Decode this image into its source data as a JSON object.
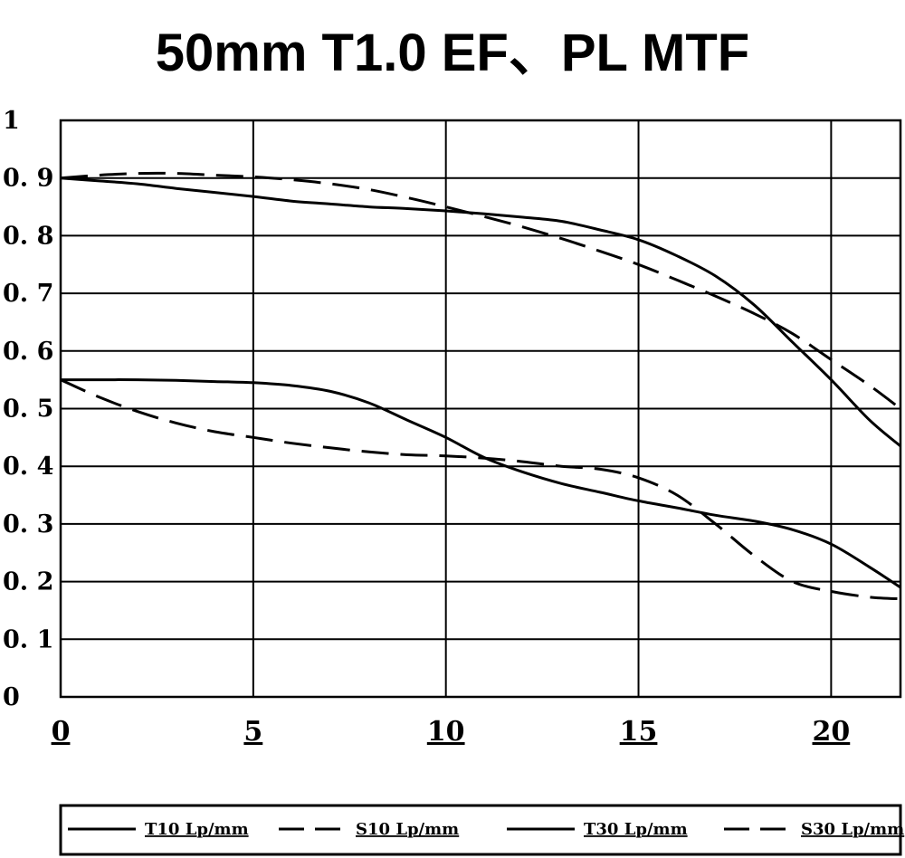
{
  "chart_data": {
    "type": "line",
    "title": "50mm T1.0 EF、PL   MTF",
    "xlabel": "",
    "ylabel": "",
    "xlim": [
      0,
      21.8
    ],
    "ylim": [
      0,
      1
    ],
    "x_ticks": [
      "0",
      "5",
      "10",
      "15",
      "20"
    ],
    "x_tick_values": [
      0,
      5,
      10,
      15,
      20
    ],
    "y_ticks": [
      "0",
      "0.1",
      "0.2",
      "0.3",
      "0.4",
      "0.5",
      "0.6",
      "0.7",
      "0.8",
      "0.9",
      "1"
    ],
    "y_tick_labels": [
      "0",
      "0. 1",
      "0. 2",
      "0. 3",
      "0. 4",
      "0. 5",
      "0. 6",
      "0. 7",
      "0. 8",
      "0. 9",
      "1"
    ],
    "grid": true,
    "legend_position": "bottom",
    "series": [
      {
        "name": "T10 Lp/mm",
        "style": "solid",
        "color": "#000000",
        "x": [
          0,
          1,
          2,
          3,
          4,
          5,
          6,
          7,
          8,
          9,
          10,
          11,
          12,
          13,
          14,
          15,
          16,
          17,
          18,
          19,
          20,
          21,
          21.8
        ],
        "y": [
          0.9,
          0.895,
          0.89,
          0.882,
          0.875,
          0.868,
          0.86,
          0.855,
          0.85,
          0.847,
          0.843,
          0.838,
          0.832,
          0.825,
          0.81,
          0.793,
          0.765,
          0.73,
          0.68,
          0.615,
          0.55,
          0.48,
          0.435
        ]
      },
      {
        "name": "S10 Lp/mm",
        "style": "dashed",
        "color": "#000000",
        "x": [
          0,
          1,
          2,
          3,
          4,
          5,
          6,
          7,
          8,
          9,
          10,
          11,
          12,
          13,
          14,
          15,
          16,
          17,
          18,
          19,
          20,
          21,
          21.8
        ],
        "y": [
          0.9,
          0.905,
          0.908,
          0.908,
          0.905,
          0.902,
          0.897,
          0.89,
          0.88,
          0.866,
          0.85,
          0.833,
          0.815,
          0.795,
          0.773,
          0.75,
          0.723,
          0.695,
          0.665,
          0.63,
          0.585,
          0.54,
          0.5
        ]
      },
      {
        "name": "T30 Lp/mm",
        "style": "solid",
        "color": "#000000",
        "x": [
          0,
          1,
          2,
          3,
          4,
          5,
          6,
          7,
          8,
          9,
          10,
          11,
          12,
          13,
          14,
          15,
          16,
          17,
          18,
          19,
          20,
          21,
          21.8
        ],
        "y": [
          0.55,
          0.55,
          0.55,
          0.549,
          0.547,
          0.545,
          0.54,
          0.53,
          0.51,
          0.48,
          0.45,
          0.415,
          0.39,
          0.37,
          0.355,
          0.34,
          0.328,
          0.315,
          0.305,
          0.29,
          0.265,
          0.225,
          0.19
        ]
      },
      {
        "name": "S30 Lp/mm",
        "style": "dashed",
        "color": "#000000",
        "x": [
          0,
          1,
          2,
          3,
          4,
          5,
          6,
          7,
          8,
          9,
          10,
          11,
          12,
          13,
          14,
          15,
          16,
          17,
          18,
          19,
          20,
          21,
          21.8
        ],
        "y": [
          0.55,
          0.52,
          0.495,
          0.475,
          0.46,
          0.45,
          0.44,
          0.432,
          0.425,
          0.42,
          0.418,
          0.414,
          0.408,
          0.4,
          0.395,
          0.38,
          0.35,
          0.3,
          0.245,
          0.2,
          0.183,
          0.173,
          0.17
        ]
      }
    ]
  }
}
